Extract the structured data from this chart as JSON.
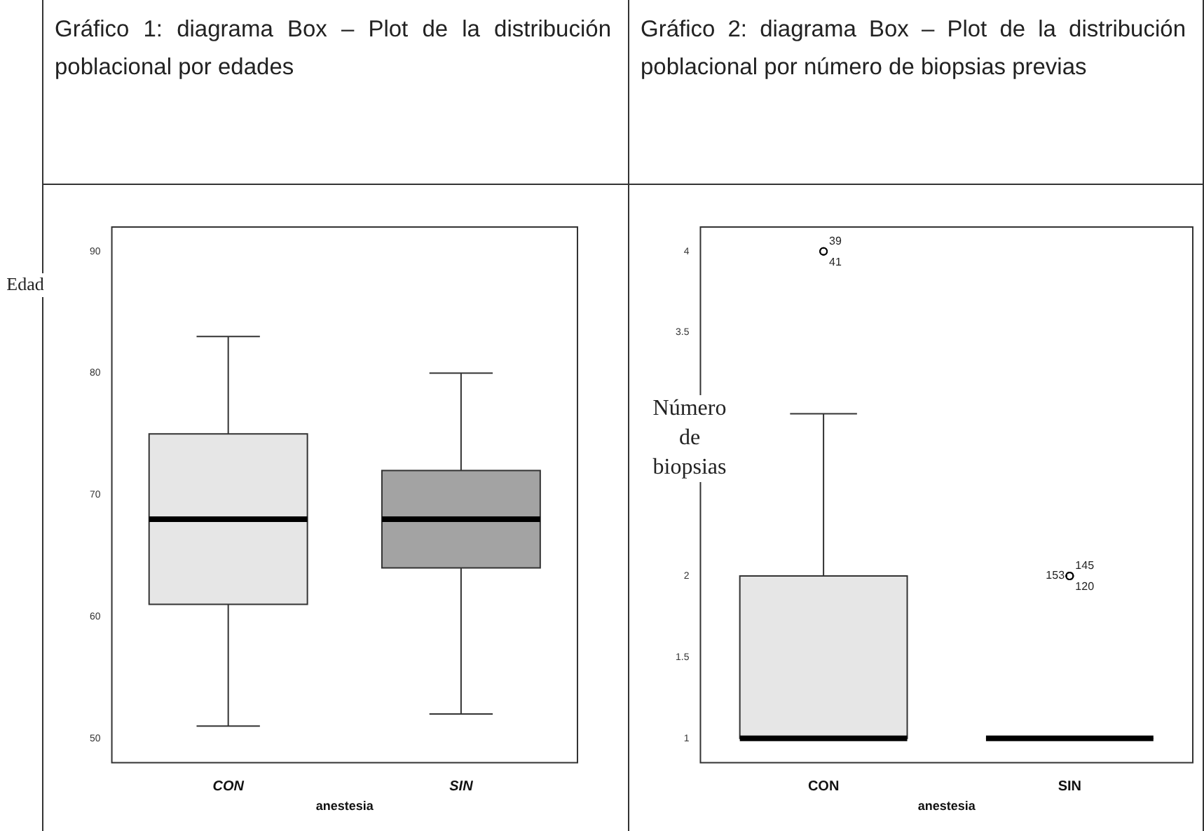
{
  "chart_data": [
    {
      "type": "box",
      "title": "Gráfico 1: diagrama Box – Plot de la distribución poblacional por edades",
      "xlabel": "anestesia",
      "ylabel": "Edad",
      "categories": [
        "CON",
        "SIN"
      ],
      "colors": [
        "#e6e6e6",
        "#a3a3a3"
      ],
      "boxes": [
        {
          "low": 51,
          "q1": 61,
          "median": 68,
          "q3": 75,
          "high": 83
        },
        {
          "low": 52,
          "q1": 64,
          "median": 68,
          "q3": 72,
          "high": 80
        }
      ],
      "ylim": [
        48,
        92
      ],
      "yticks": [
        50,
        60,
        70,
        80,
        90
      ]
    },
    {
      "type": "box",
      "title": "Gráfico 2: diagrama Box – Plot de la distribución poblacional por número de biopsias previas",
      "xlabel": "anestesia",
      "ylabel": "Número de biopsias",
      "categories": [
        "CON",
        "SIN"
      ],
      "colors": [
        "#e6e6e6",
        "#333333"
      ],
      "boxes": [
        {
          "low": 1,
          "q1": 1,
          "median": 1,
          "q3": 2,
          "high": 3,
          "outliers": [
            4,
            4
          ]
        },
        {
          "low": 1,
          "q1": 1,
          "median": 1,
          "q3": 1,
          "high": 1,
          "outliers": [
            2,
            2,
            2
          ]
        }
      ],
      "ylim": [
        0.85,
        4.15
      ],
      "yticks": [
        1,
        1.5,
        2,
        3.5,
        4
      ],
      "annotations": [
        "39",
        "41",
        "145",
        "120",
        "153"
      ]
    }
  ]
}
